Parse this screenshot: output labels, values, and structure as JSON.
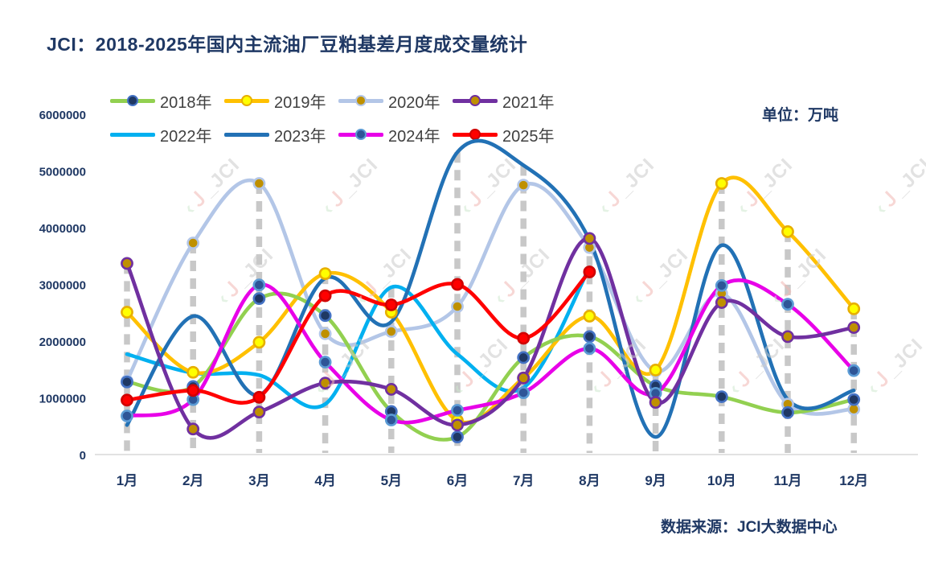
{
  "title": "JCI：2018-2025年国内主流油厂豆粕基差月度成交量统计",
  "unit_label": "单位：万吨",
  "source_label": "数据来源：JCI大数据中心",
  "watermark_text": {
    "j": "Ｊ",
    "accent": "‹",
    "text": "JCI"
  },
  "y_axis": {
    "ticks": [
      "6000000",
      "5000000",
      "4000000",
      "3000000",
      "2000000",
      "1000000",
      "0"
    ],
    "color": "#1F3864"
  },
  "x_axis": {
    "color": "#1F3864"
  },
  "legend_rows": [
    [
      "2018年",
      "2019年",
      "2020年",
      "2021年"
    ],
    [
      "2022年",
      "2023年",
      "2024年",
      "2025年"
    ]
  ],
  "chart_data": {
    "type": "line",
    "smooth": true,
    "categories": [
      "1月",
      "2月",
      "3月",
      "4月",
      "5月",
      "6月",
      "7月",
      "8月",
      "9月",
      "10月",
      "11月",
      "12月"
    ],
    "ylim": [
      0,
      6000000
    ],
    "grid": "vertical dashed drop-lines from each month's max point",
    "legend_position": "top-left",
    "title": "JCI：2018-2025年国内主流油厂豆粕基差月度成交量统计",
    "unit": "万吨",
    "series": [
      {
        "name": "2018年",
        "color": "#92D050",
        "marker": {
          "fill": "#1F3864",
          "ring": "#4472C4"
        },
        "values": [
          1280000,
          1200000,
          2750000,
          2450000,
          760000,
          310000,
          1710000,
          2080000,
          1210000,
          1020000,
          740000,
          970000
        ]
      },
      {
        "name": "2019年",
        "color": "#FFC000",
        "marker": {
          "fill": "#FFFF00",
          "ring": "#E7AF00"
        },
        "values": [
          2510000,
          1450000,
          1980000,
          3190000,
          2510000,
          600000,
          1350000,
          2440000,
          1490000,
          4780000,
          3930000,
          2570000
        ]
      },
      {
        "name": "2020年",
        "color": "#B3C6E7",
        "marker": {
          "fill": "#BF9000",
          "ring": "#B3C6E7"
        },
        "values": [
          1300000,
          3730000,
          4780000,
          2130000,
          2170000,
          2610000,
          4750000,
          3650000,
          1470000,
          2840000,
          890000,
          800000
        ]
      },
      {
        "name": "2021年",
        "color": "#7030A0",
        "marker": {
          "fill": "#BF9000",
          "ring": "#7030A0"
        },
        "values": [
          3370000,
          450000,
          750000,
          1260000,
          1150000,
          520000,
          1350000,
          3810000,
          920000,
          2680000,
          2080000,
          2240000
        ]
      },
      {
        "name": "2022年",
        "color": "#00B0F0",
        "marker": null,
        "values": [
          1770000,
          1440000,
          1400000,
          890000,
          2950000,
          1770000,
          1180000,
          3300000
        ]
      },
      {
        "name": "2023年",
        "color": "#2271B5",
        "marker": null,
        "values": [
          520000,
          2440000,
          1050000,
          3110000,
          2340000,
          5330000,
          5100000,
          3780000,
          310000,
          3690000,
          970000,
          1130000
        ]
      },
      {
        "name": "2024年",
        "color": "#E800E8",
        "marker": {
          "fill": "#2E5597",
          "ring": "#5B9BD5"
        },
        "values": [
          680000,
          970000,
          2990000,
          1630000,
          610000,
          780000,
          1090000,
          1870000,
          1080000,
          2980000,
          2650000,
          1480000
        ]
      },
      {
        "name": "2025年",
        "color": "#FF0000",
        "marker": {
          "fill": "#FF0000",
          "ring": "#D00000"
        },
        "values": [
          960000,
          1130000,
          1010000,
          2800000,
          2640000,
          3000000,
          2050000,
          3220000
        ]
      }
    ]
  },
  "colors": {
    "title": "#1F3864",
    "axis_text": "#1F3864",
    "legend_text": "#404040",
    "dropline": "#C8C8C8",
    "axis_line": "#D9D9D9"
  }
}
